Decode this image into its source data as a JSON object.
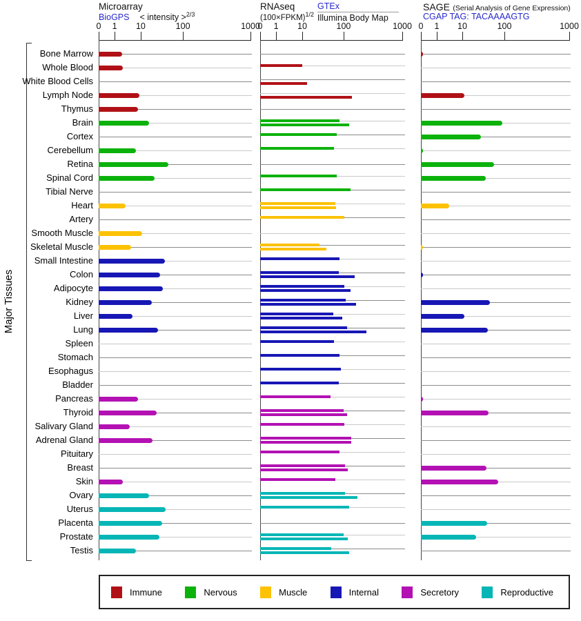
{
  "y_axis_label": "Major Tissues",
  "axis_ticks": [
    "0",
    "1",
    "10",
    "100",
    "1000"
  ],
  "link_color": "#2828cc",
  "panels": [
    {
      "title": "Microarray",
      "link_label": "BioGPS",
      "subtitle": "< intensity >",
      "subtitle_sup": "2/3"
    },
    {
      "title": "RNAseq",
      "subtitle": "(100×FPKM)",
      "subtitle_sup": "1/2",
      "link_label": "GTEx",
      "sublink_label": "Illumina Body Map"
    },
    {
      "title": "SAGE",
      "title_note": "(Serial Analysis of Gene Expression)",
      "link_label": "CGAP",
      "tag_label": "TAG: TACAAAAGTG"
    }
  ],
  "legend": [
    {
      "label": "Immune",
      "group": "immune",
      "color": "#b01116"
    },
    {
      "label": "Nervous",
      "group": "nervous",
      "color": "#0cb20c"
    },
    {
      "label": "Muscle",
      "group": "muscle",
      "color": "#fcc203"
    },
    {
      "label": "Internal",
      "group": "internal",
      "color": "#1717b5"
    },
    {
      "label": "Secretory",
      "group": "secretory",
      "color": "#b311b3"
    },
    {
      "label": "Reproductive",
      "group": "reproductive",
      "color": "#06b6b6"
    }
  ],
  "chart_data": {
    "type": "bar",
    "orientation": "horizontal",
    "scale": "pseudo-log, ticks at 0 / 1 / 10 / 100 / 1000",
    "panels": [
      "Microarray (BioGPS)",
      "RNAseq (GTEx + Illumina Body Map)",
      "SAGE (CGAP TAG: TACAAAAGTG)"
    ],
    "group_colors": {
      "immune": "#b01116",
      "nervous": "#0cb20c",
      "muscle": "#fcc203",
      "internal": "#1717b5",
      "secretory": "#b311b3",
      "reproductive": "#06b6b6"
    },
    "tissues": [
      {
        "name": "Bone Marrow",
        "group": "immune",
        "microarray": 2,
        "rnaseq_gtex": null,
        "rnaseq_illumina": null,
        "sage": 0.1
      },
      {
        "name": "Whole Blood",
        "group": "immune",
        "microarray": 2.1,
        "rnaseq_gtex": 10,
        "rnaseq_illumina": null,
        "sage": null
      },
      {
        "name": "White Blood Cells",
        "group": "immune",
        "microarray": null,
        "rnaseq_gtex": null,
        "rnaseq_illumina": 13,
        "sage": null
      },
      {
        "name": "Lymph Node",
        "group": "immune",
        "microarray": 9,
        "rnaseq_gtex": null,
        "rnaseq_illumina": 140,
        "sage": 11
      },
      {
        "name": "Thymus",
        "group": "immune",
        "microarray": 8,
        "rnaseq_gtex": null,
        "rnaseq_illumina": null,
        "sage": null
      },
      {
        "name": "Brain",
        "group": "nervous",
        "microarray": 16,
        "rnaseq_gtex": 79,
        "rnaseq_illumina": 124,
        "sage": 89
      },
      {
        "name": "Cortex",
        "group": "nervous",
        "microarray": null,
        "rnaseq_gtex": 68,
        "rnaseq_illumina": null,
        "sage": 28
      },
      {
        "name": "Cerebellum",
        "group": "nervous",
        "microarray": 6.5,
        "rnaseq_gtex": 58,
        "rnaseq_illumina": null,
        "sage": 0.1
      },
      {
        "name": "Retina",
        "group": "nervous",
        "microarray": 45,
        "rnaseq_gtex": null,
        "rnaseq_illumina": null,
        "sage": 57
      },
      {
        "name": "Spinal Cord",
        "group": "nervous",
        "microarray": 21,
        "rnaseq_gtex": 68,
        "rnaseq_illumina": null,
        "sage": 36
      },
      {
        "name": "Tibial Nerve",
        "group": "nervous",
        "microarray": null,
        "rnaseq_gtex": 131,
        "rnaseq_illumina": null,
        "sage": null
      },
      {
        "name": "Heart",
        "group": "muscle",
        "microarray": 2.6,
        "rnaseq_gtex": 63,
        "rnaseq_illumina": 66,
        "sage": 3
      },
      {
        "name": "Artery",
        "group": "muscle",
        "microarray": null,
        "rnaseq_gtex": 102,
        "rnaseq_illumina": null,
        "sage": null
      },
      {
        "name": "Smooth Muscle",
        "group": "muscle",
        "microarray": 11,
        "rnaseq_gtex": null,
        "rnaseq_illumina": null,
        "sage": null
      },
      {
        "name": "Skeletal Muscle",
        "group": "muscle",
        "microarray": 4.3,
        "rnaseq_gtex": 26,
        "rnaseq_illumina": 38,
        "sage": 0.1
      },
      {
        "name": "Small Intestine",
        "group": "internal",
        "microarray": 37,
        "rnaseq_gtex": 79,
        "rnaseq_illumina": null,
        "sage": null
      },
      {
        "name": "Colon",
        "group": "internal",
        "microarray": 29,
        "rnaseq_gtex": 76,
        "rnaseq_illumina": 154,
        "sage": 0.1
      },
      {
        "name": "Adipocyte",
        "group": "internal",
        "microarray": 33,
        "rnaseq_gtex": 102,
        "rnaseq_illumina": 131,
        "sage": null
      },
      {
        "name": "Kidney",
        "group": "internal",
        "microarray": 18,
        "rnaseq_gtex": 108,
        "rnaseq_illumina": 163,
        "sage": 45
      },
      {
        "name": "Liver",
        "group": "internal",
        "microarray": 4.8,
        "rnaseq_gtex": 56,
        "rnaseq_illumina": 93,
        "sage": 11
      },
      {
        "name": "Lung",
        "group": "internal",
        "microarray": 26,
        "rnaseq_gtex": 115,
        "rnaseq_illumina": 244,
        "sage": 40
      },
      {
        "name": "Spleen",
        "group": "internal",
        "microarray": null,
        "rnaseq_gtex": 58,
        "rnaseq_illumina": null,
        "sage": null
      },
      {
        "name": "Stomach",
        "group": "internal",
        "microarray": null,
        "rnaseq_gtex": 79,
        "rnaseq_illumina": null,
        "sage": null
      },
      {
        "name": "Esophagus",
        "group": "internal",
        "microarray": null,
        "rnaseq_gtex": 86,
        "rnaseq_illumina": null,
        "sage": null
      },
      {
        "name": "Bladder",
        "group": "internal",
        "microarray": null,
        "rnaseq_gtex": 76,
        "rnaseq_illumina": null,
        "sage": null
      },
      {
        "name": "Pancreas",
        "group": "secretory",
        "microarray": 8,
        "rnaseq_gtex": 48,
        "rnaseq_illumina": null,
        "sage": 0.1
      },
      {
        "name": "Thyroid",
        "group": "secretory",
        "microarray": 24,
        "rnaseq_gtex": 100,
        "rnaseq_illumina": 115,
        "sage": 42
      },
      {
        "name": "Salivary Gland",
        "group": "secretory",
        "microarray": 3.8,
        "rnaseq_gtex": 102,
        "rnaseq_illumina": null,
        "sage": null
      },
      {
        "name": "Adrenal Gland",
        "group": "secretory",
        "microarray": 19,
        "rnaseq_gtex": 135,
        "rnaseq_illumina": 135,
        "sage": null
      },
      {
        "name": "Pituitary",
        "group": "secretory",
        "microarray": null,
        "rnaseq_gtex": 79,
        "rnaseq_illumina": null,
        "sage": null
      },
      {
        "name": "Breast",
        "group": "secretory",
        "microarray": null,
        "rnaseq_gtex": 106,
        "rnaseq_illumina": 118,
        "sage": 37
      },
      {
        "name": "Skin",
        "group": "secretory",
        "microarray": 2.1,
        "rnaseq_gtex": 63,
        "rnaseq_illumina": null,
        "sage": 71
      },
      {
        "name": "Ovary",
        "group": "reproductive",
        "microarray": 16,
        "rnaseq_gtex": 106,
        "rnaseq_illumina": 172,
        "sage": null
      },
      {
        "name": "Uterus",
        "group": "reproductive",
        "microarray": 39,
        "rnaseq_gtex": 126,
        "rnaseq_illumina": null,
        "sage": null
      },
      {
        "name": "Placenta",
        "group": "reproductive",
        "microarray": 32,
        "rnaseq_gtex": null,
        "rnaseq_illumina": null,
        "sage": 39
      },
      {
        "name": "Prostate",
        "group": "reproductive",
        "microarray": 28,
        "rnaseq_gtex": 100,
        "rnaseq_illumina": 118,
        "sage": 21
      },
      {
        "name": "Testis",
        "group": "reproductive",
        "microarray": 6.6,
        "rnaseq_gtex": 50,
        "rnaseq_illumina": 124,
        "sage": null
      }
    ]
  }
}
